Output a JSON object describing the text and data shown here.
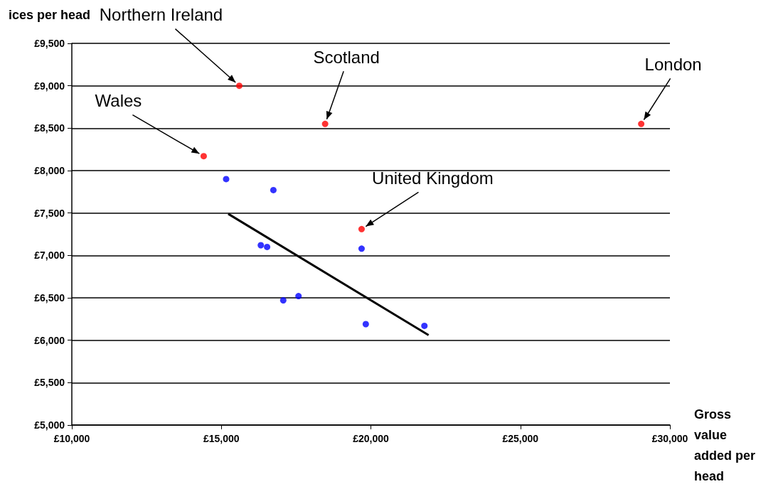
{
  "chart_data": {
    "type": "scatter",
    "ylabel": "ices per head",
    "xlabel": "Gross value added per head",
    "xlim": [
      10000,
      30000
    ],
    "xticks": [
      {
        "value": 10000,
        "label": "£10,000"
      },
      {
        "value": 15000,
        "label": "£15,000"
      },
      {
        "value": 20000,
        "label": "£20,000"
      },
      {
        "value": 25000,
        "label": "£25,000"
      },
      {
        "value": 30000,
        "label": "£30,000"
      }
    ],
    "ylim": [
      5000,
      9500
    ],
    "yticks": [
      {
        "value": 5000,
        "label": "£5,000"
      },
      {
        "value": 5500,
        "label": "£5,500"
      },
      {
        "value": 6000,
        "label": "£6,000"
      },
      {
        "value": 6500,
        "label": "£6,500"
      },
      {
        "value": 7000,
        "label": "£7,000"
      },
      {
        "value": 7500,
        "label": "£7,500"
      },
      {
        "value": 8000,
        "label": "£8,000"
      },
      {
        "value": 8500,
        "label": "£8,500"
      },
      {
        "value": 9000,
        "label": "£9,000"
      },
      {
        "value": 9500,
        "label": "£9,500"
      }
    ],
    "grid": "y",
    "series": [
      {
        "color": "#ff0000",
        "marker": "circle",
        "x": [
          15600,
          18470,
          29040,
          14410,
          19690
        ],
        "values": [
          9000,
          8550,
          8550,
          8170,
          7310
        ]
      },
      {
        "color": "#0000ff",
        "marker": "circle",
        "x": [
          15160,
          16740,
          16320,
          16530,
          19690,
          17070,
          17580,
          19830,
          21790
        ],
        "values": [
          7900,
          7770,
          7120,
          7100,
          7080,
          6470,
          6520,
          6190,
          6170
        ]
      },
      {
        "type": "line",
        "marker": "none",
        "color": "#000000",
        "x": [
          15230,
          21930
        ],
        "values": [
          7490,
          6060
        ]
      }
    ],
    "annotations": [
      {
        "text": "Northern Ireland",
        "x": 15600,
        "y": 9000
      },
      {
        "text": "Scotland",
        "x": 18470,
        "y": 8550
      },
      {
        "text": "London",
        "x": 29040,
        "y": 8550
      },
      {
        "text": "Wales",
        "x": 14410,
        "y": 8170
      },
      {
        "text": "United Kingdom",
        "x": 19690,
        "y": 7310
      }
    ]
  }
}
